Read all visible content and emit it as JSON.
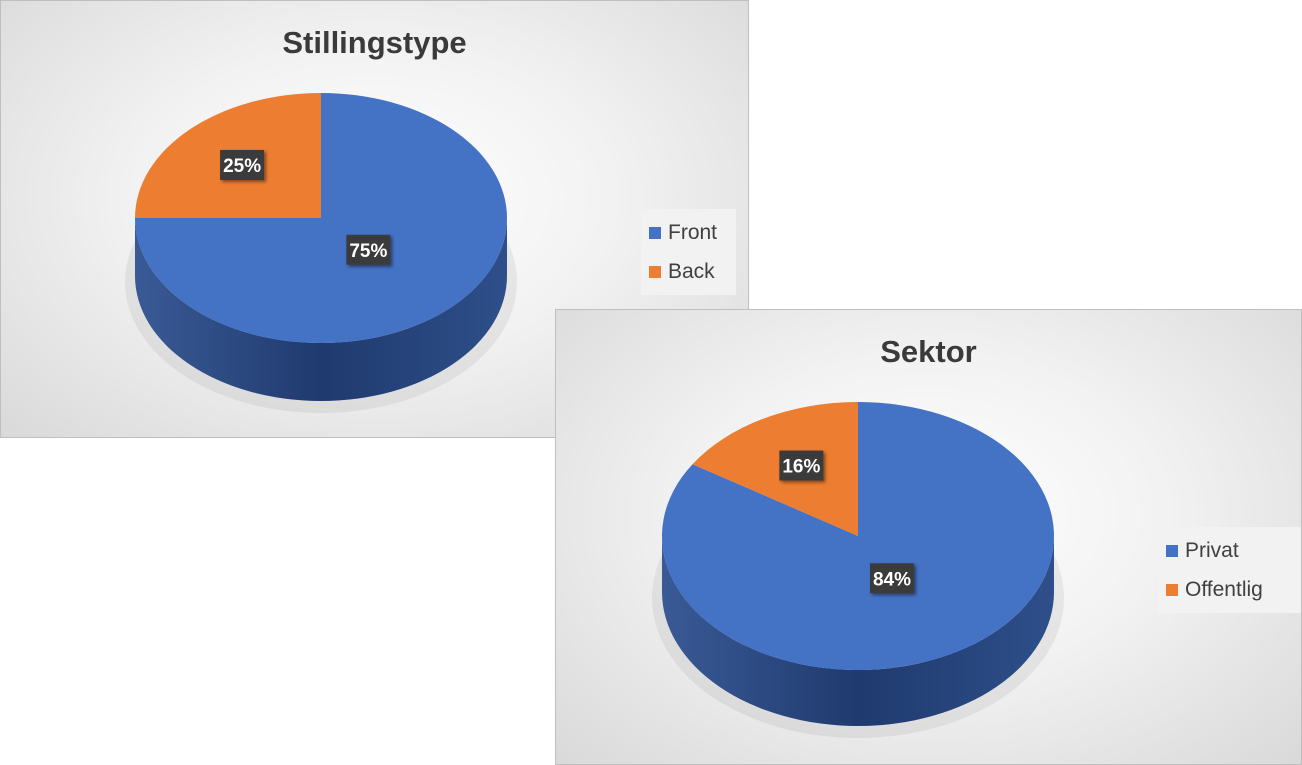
{
  "chart_data": [
    {
      "type": "pie",
      "title": "Stillingstype",
      "categories": [
        "Front",
        "Back"
      ],
      "values": [
        75,
        25
      ],
      "labels": [
        "75%",
        "25%"
      ],
      "colors": [
        "#4472C4",
        "#ED7D31"
      ],
      "legend_position": "right"
    },
    {
      "type": "pie",
      "title": "Sektor",
      "categories": [
        "Privat",
        "Offentlig"
      ],
      "values": [
        84,
        16
      ],
      "labels": [
        "84%",
        "16%"
      ],
      "colors": [
        "#4472C4",
        "#ED7D31"
      ],
      "legend_position": "right"
    }
  ]
}
